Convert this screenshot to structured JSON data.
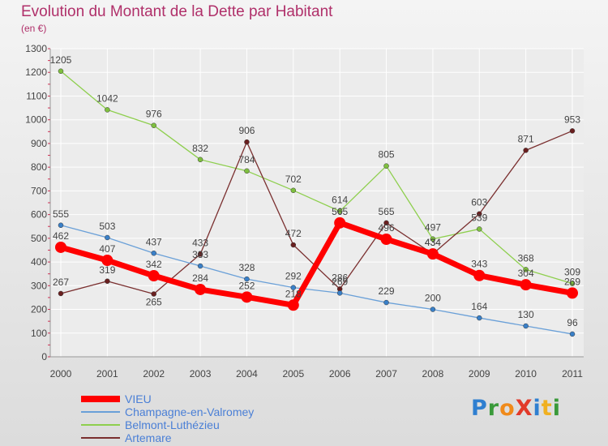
{
  "chart_data": {
    "type": "line",
    "title": "Evolution du Montant de la Dette par Habitant",
    "subtitle": "(en €)",
    "xlabel": "",
    "ylabel": "",
    "categories": [
      "2000",
      "2001",
      "2002",
      "2003",
      "2004",
      "2005",
      "2006",
      "2007",
      "2008",
      "2009",
      "2010",
      "2011"
    ],
    "ylim": [
      0,
      1300
    ],
    "yticks": [
      0,
      100,
      200,
      300,
      400,
      500,
      600,
      700,
      800,
      900,
      1000,
      1100,
      1200,
      1300
    ],
    "grid": true,
    "legend_position": "bottom-left",
    "series": [
      {
        "name": "Belmont-Luthézieu",
        "color": "#8ecf4e",
        "point_color": "#7fc03f",
        "values": [
          1205,
          1042,
          976,
          832,
          784,
          702,
          614,
          805,
          497,
          539,
          368,
          309
        ],
        "labels": [
          "1205",
          "1042",
          "976",
          "832",
          "784",
          "702",
          "614",
          "805",
          "497",
          "539",
          "368",
          "309"
        ]
      },
      {
        "name": "Artemare",
        "color": "#7a2f2f",
        "point_color": "#6a1f1f",
        "values": [
          267,
          319,
          265,
          433,
          906,
          472,
          286,
          565,
          434,
          603,
          871,
          953
        ],
        "labels": [
          "267",
          "319",
          "265",
          "433",
          "906",
          "472",
          "286",
          "565",
          "434",
          "603",
          "871",
          "953"
        ]
      },
      {
        "name": "Champagne-en-Valromey",
        "color": "#6aa0d8",
        "point_color": "#3a80c8",
        "values": [
          555,
          503,
          437,
          383,
          328,
          292,
          269,
          229,
          200,
          164,
          130,
          96
        ],
        "labels": [
          "555",
          "503",
          "437",
          "383",
          "328",
          "292",
          "269",
          "229",
          "200",
          "164",
          "130",
          "96"
        ]
      },
      {
        "name": "VIEU",
        "color": "#ff0000",
        "point_color": "#ff0000",
        "values": [
          462,
          407,
          342,
          284,
          252,
          218,
          565,
          496,
          434,
          343,
          304,
          269
        ],
        "labels": [
          "462",
          "407",
          "342",
          "284",
          "252",
          "218",
          "565",
          "496",
          "434",
          "343",
          "304",
          "269"
        ]
      }
    ]
  },
  "legend": {
    "items": [
      {
        "label": "VIEU",
        "color": "#ff0000",
        "thick": true
      },
      {
        "label": "Champagne-en-Valromey",
        "color": "#6aa0d8",
        "thick": false
      },
      {
        "label": "Belmont-Luthézieu",
        "color": "#8ecf4e",
        "thick": false
      },
      {
        "label": "Artemare",
        "color": "#7a2f2f",
        "thick": false
      }
    ]
  },
  "brand": {
    "text": "ProXiti",
    "letters": [
      {
        "ch": "P",
        "color": "#2f7fd0"
      },
      {
        "ch": "r",
        "color": "#3a9a3a"
      },
      {
        "ch": "o",
        "color": "#f08a1a"
      },
      {
        "ch": "X",
        "color": "#e23a2a"
      },
      {
        "ch": "i",
        "color": "#2f7fd0"
      },
      {
        "ch": "t",
        "color": "#f0b020"
      },
      {
        "ch": "i",
        "color": "#3a9a3a"
      }
    ]
  }
}
